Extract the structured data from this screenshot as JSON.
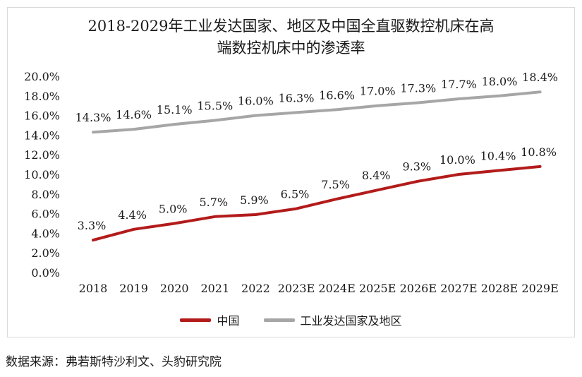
{
  "title_line1": "2018-2029年工业发达国家、地区及中国全直驱数控机床在高",
  "title_line2": "端数控机床中的渗透率",
  "source": "数据来源：弗若斯特沙利文、头豹研究院",
  "colors": {
    "china": "#b31b1b",
    "developed": "#a6a6a6"
  },
  "chart_data": {
    "type": "line",
    "categories": [
      "2018",
      "2019",
      "2020",
      "2021",
      "2022",
      "2023E",
      "2024E",
      "2025E",
      "2026E",
      "2027E",
      "2028E",
      "2029E"
    ],
    "ylim": [
      0,
      20
    ],
    "yticks": [
      "0.0%",
      "2.0%",
      "4.0%",
      "6.0%",
      "8.0%",
      "10.0%",
      "12.0%",
      "14.0%",
      "16.0%",
      "18.0%",
      "20.0%"
    ],
    "series": [
      {
        "name": "中国",
        "values": [
          3.3,
          4.4,
          5.0,
          5.7,
          5.9,
          6.5,
          7.5,
          8.4,
          9.3,
          10.0,
          10.4,
          10.8
        ],
        "labels": [
          "3.3%",
          "4.4%",
          "5.0%",
          "5.7%",
          "5.9%",
          "6.5%",
          "7.5%",
          "8.4%",
          "9.3%",
          "10.0%",
          "10.4%",
          "10.8%"
        ]
      },
      {
        "name": "工业发达国家及地区",
        "values": [
          14.3,
          14.6,
          15.1,
          15.5,
          16.0,
          16.3,
          16.6,
          17.0,
          17.3,
          17.7,
          18.0,
          18.4
        ],
        "labels": [
          "14.3%",
          "14.6%",
          "15.1%",
          "15.5%",
          "16.0%",
          "16.3%",
          "16.6%",
          "17.0%",
          "17.3%",
          "17.7%",
          "18.0%",
          "18.4%"
        ]
      }
    ],
    "legend_position": "bottom"
  }
}
